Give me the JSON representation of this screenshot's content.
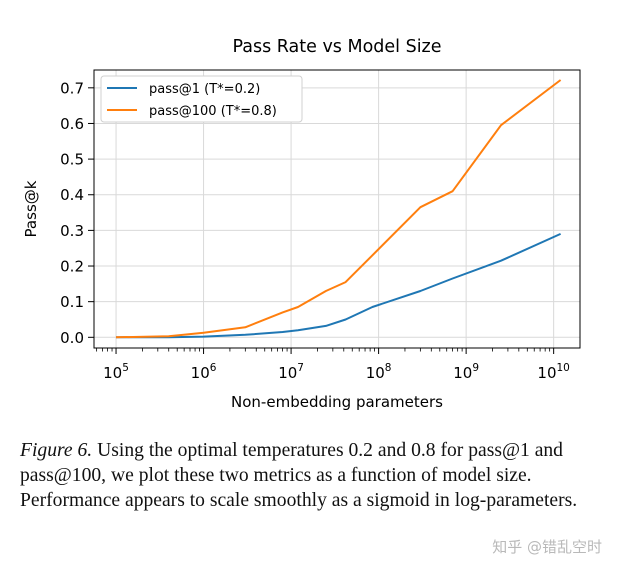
{
  "chart_data": {
    "type": "line",
    "title": "Pass Rate vs Model Size",
    "xlabel": "Non-embedding parameters",
    "ylabel": "Pass@k",
    "xscale": "log",
    "xlim": [
      56000,
      20000000000
    ],
    "ylim": [
      -0.03,
      0.75
    ],
    "xticks": [
      {
        "value": 100000,
        "base": "10",
        "exp": "5"
      },
      {
        "value": 1000000,
        "base": "10",
        "exp": "6"
      },
      {
        "value": 10000000,
        "base": "10",
        "exp": "7"
      },
      {
        "value": 100000000,
        "base": "10",
        "exp": "8"
      },
      {
        "value": 1000000000,
        "base": "10",
        "exp": "9"
      },
      {
        "value": 10000000000,
        "base": "10",
        "exp": "10"
      }
    ],
    "yticks": [
      {
        "value": 0.0,
        "label": "0.0"
      },
      {
        "value": 0.1,
        "label": "0.1"
      },
      {
        "value": 0.2,
        "label": "0.2"
      },
      {
        "value": 0.3,
        "label": "0.3"
      },
      {
        "value": 0.4,
        "label": "0.4"
      },
      {
        "value": 0.5,
        "label": "0.5"
      },
      {
        "value": 0.6,
        "label": "0.6"
      },
      {
        "value": 0.7,
        "label": "0.7"
      }
    ],
    "grid": true,
    "legend_position": "top-left",
    "series": [
      {
        "name": "pass@1 (T*=0.2)",
        "color": "#1f77b4",
        "x": [
          100000,
          400000,
          1000000,
          3000000,
          8000000,
          12000000,
          25000000,
          42000000,
          85000000,
          300000000,
          700000000,
          2500000000,
          12000000000
        ],
        "y": [
          0.0,
          0.0,
          0.002,
          0.007,
          0.015,
          0.02,
          0.032,
          0.05,
          0.085,
          0.13,
          0.165,
          0.215,
          0.29
        ]
      },
      {
        "name": "pass@100 (T*=0.8)",
        "color": "#ff7f0e",
        "x": [
          100000,
          400000,
          1000000,
          3000000,
          8000000,
          12000000,
          25000000,
          42000000,
          85000000,
          300000000,
          700000000,
          2500000000,
          12000000000
        ],
        "y": [
          0.0,
          0.003,
          0.013,
          0.028,
          0.07,
          0.085,
          0.13,
          0.155,
          0.23,
          0.365,
          0.41,
          0.595,
          0.722
        ]
      }
    ]
  },
  "caption": {
    "figure_label": "Figure 6.",
    "text": " Using the optimal temperatures 0.2 and 0.8 for pass@1 and pass@100, we plot these two metrics as a function of model size. Performance appears to scale smoothly as a sigmoid in log-parameters."
  },
  "watermark": "知乎 @错乱空时"
}
